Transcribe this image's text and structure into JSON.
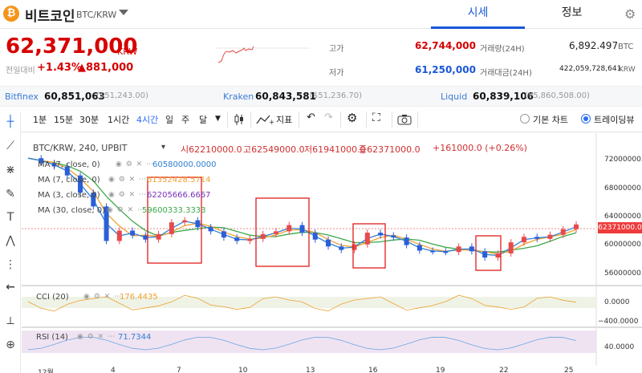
{
  "header": {
    "coin_symbol": "₿",
    "coin_name": "비트코인",
    "pair": "BTC/KRW",
    "tabs": [
      {
        "label": "시세",
        "active": true
      },
      {
        "label": "정보",
        "active": false
      }
    ]
  },
  "price": {
    "current": "62,371,000",
    "unit": "KRW",
    "change_label": "전일대비",
    "change_pct": "+1.43%",
    "change_amt": "▲881,000"
  },
  "stats": {
    "high_label": "고가",
    "high": "62,744,000",
    "low_label": "저가",
    "low": "61,250,000",
    "volume_label": "거래량(24H)",
    "volume": "6,892.497",
    "volume_unit": "BTC",
    "amount_label": "거래대금(24H)",
    "amount": "422,059,728,641",
    "amount_unit": "KRW"
  },
  "exchanges": [
    {
      "name": "Bitfinex",
      "krw": "60,851,063",
      "usd": "($51,243.00)"
    },
    {
      "name": "Kraken",
      "krw": "60,843,581",
      "usd": "($51,236.70)"
    },
    {
      "name": "Liquid",
      "krw": "60,839,106",
      "usd": "(¥5,860,508.00)"
    }
  ],
  "toolbar": {
    "intervals": [
      "1분",
      "15분",
      "30분",
      "1시간",
      "4시간",
      "일",
      "주",
      "달"
    ],
    "active_interval": "4시간",
    "indicator_label": "지표",
    "mode_basic": "기본 차트",
    "mode_tv": "트레이딩뷰"
  },
  "chart": {
    "symbol_line": "BTC/KRW, 240, UPBIT",
    "ohlc": {
      "open": "시62210000.0",
      "high": "고62549000.0",
      "low": "저61941000.0",
      "close": "종62371000.0",
      "change": "+161000.0 (+0.26%)"
    },
    "indicators": [
      {
        "label": "MA (7, close, 0)",
        "value": "60580000.0000"
      },
      {
        "label": "MA (7, close, 0)",
        "value": "61352428.5714"
      },
      {
        "label": "MA (3, close, 0)",
        "value": "62205666.6667"
      },
      {
        "label": "MA (30, close, 0)",
        "value": "59600333.3333"
      }
    ],
    "price_axis": [
      "72000000.0",
      "68000000.0",
      "64000000.0",
      "60000000.0",
      "56000000.0"
    ],
    "last_price": "62371000.0",
    "cci": {
      "label": "CCI (20)",
      "value": "176.4435",
      "axis": [
        "0.0000",
        "−400.0000"
      ]
    },
    "rsi": {
      "label": "RSI (14)",
      "value": "71.7344",
      "axis": [
        "40.0000"
      ]
    },
    "x_axis": [
      "12월",
      "4",
      "7",
      "10",
      "13",
      "16",
      "19",
      "22",
      "25"
    ]
  },
  "chart_data": {
    "type": "line",
    "title": "BTC/KRW, 240, UPBIT",
    "ylabel": "",
    "ylim": [
      54000000,
      74000000
    ],
    "series": [
      {
        "name": "BTC/KRW",
        "values": [
          72000000,
          71300000,
          70800000,
          69500000,
          67000000,
          65000000,
          60000000,
          61500000,
          60800000,
          60200000,
          61000000,
          62700000,
          63000000,
          62000000,
          61400000,
          60500000,
          60000000,
          60300000,
          61000000,
          61400000,
          62300000,
          61200000,
          60200000,
          59200000,
          58700000,
          59500000,
          61200000,
          60800000,
          60500000,
          59400000,
          58600000,
          58500000,
          58400000,
          59200000,
          58500000,
          57600000,
          58200000,
          59800000,
          60600000,
          60300000,
          60900000,
          61700000,
          62400000
        ]
      }
    ],
    "colors": {
      "up": "#e8494b",
      "down": "#2b5fd9",
      "ma_blue": "#2f7fd1",
      "ma_orange": "#f0a030",
      "ma_green": "#3ba84a",
      "box": "#e01c1c"
    }
  }
}
